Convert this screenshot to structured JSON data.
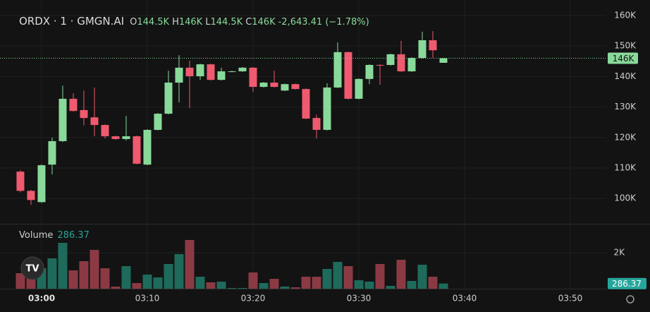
{
  "chart_data": {
    "type": "candlestick",
    "title": "ORDX · 1 · GMGN.AI",
    "ohlc": [
      {
        "label": "O",
        "text": "144.5K"
      },
      {
        "label": "H",
        "text": "146K"
      },
      {
        "label": "L",
        "text": "144.5K"
      },
      {
        "label": "C",
        "text": "146K"
      }
    ],
    "change": "-2,643.41 (−1.78%)",
    "up_color": "#89d99a",
    "down_color": "#ef5a6f",
    "x": [
      -2,
      -1,
      0,
      1,
      2,
      3,
      4,
      5,
      6,
      7,
      8,
      9,
      10,
      11,
      12,
      13,
      14,
      15,
      16,
      17,
      18,
      19,
      20,
      21,
      22,
      23,
      24,
      25,
      26,
      27,
      28,
      29,
      30,
      31,
      32,
      33,
      34,
      35,
      36,
      37,
      38
    ],
    "open": [
      108.8,
      102.5,
      98.8,
      111.1,
      118.8,
      132.7,
      129.0,
      126.6,
      124.1,
      120.4,
      119.5,
      120.4,
      111.1,
      122.5,
      127.8,
      138.0,
      142.9,
      140.1,
      144.0,
      138.9,
      141.6,
      141.7,
      142.9,
      136.6,
      138.0,
      135.4,
      137.5,
      135.9,
      126.4,
      122.5,
      136.4,
      148.0,
      132.7,
      139.2,
      143.8,
      143.8,
      147.3,
      141.7,
      146.1,
      151.9,
      144.5
    ],
    "high": [
      109.2,
      102.8,
      111.2,
      120.0,
      137.0,
      134.5,
      135.4,
      136.4,
      124.3,
      120.6,
      127.1,
      120.6,
      122.7,
      128.0,
      141.9,
      147.0,
      145.2,
      144.2,
      144.2,
      142.9,
      141.9,
      143.1,
      143.1,
      138.2,
      141.9,
      137.7,
      137.7,
      136.1,
      127.5,
      137.8,
      151.2,
      148.2,
      139.4,
      144.0,
      144.0,
      147.5,
      151.7,
      146.3,
      154.7,
      154.9,
      146
    ],
    "low": [
      102.0,
      97.9,
      98.6,
      107.9,
      118.5,
      128.5,
      124.0,
      120.4,
      119.7,
      119.3,
      119.0,
      111.2,
      110.9,
      122.3,
      127.6,
      131.5,
      129.7,
      138.9,
      138.7,
      138.7,
      141.4,
      141.5,
      135.0,
      136.4,
      136.4,
      135.2,
      135.7,
      126.0,
      119.7,
      122.3,
      136.2,
      132.5,
      132.5,
      137.5,
      137.3,
      143.6,
      141.5,
      141.5,
      145.9,
      146.1,
      144.5
    ],
    "close": [
      102.5,
      99.5,
      110.9,
      118.8,
      132.7,
      128.7,
      126.4,
      124.1,
      120.4,
      119.5,
      120.4,
      111.4,
      122.5,
      127.8,
      138.0,
      142.9,
      140.1,
      144.0,
      138.9,
      141.7,
      141.7,
      142.9,
      136.6,
      138.0,
      136.6,
      137.5,
      135.9,
      126.2,
      122.5,
      136.4,
      148.0,
      132.7,
      139.2,
      143.8,
      143.6,
      147.3,
      141.7,
      146.1,
      151.9,
      148.6,
      146
    ],
    "ylim": [
      91.7,
      165.1
    ],
    "yticks": [
      {
        "value": 100,
        "label": "100K"
      },
      {
        "value": 110,
        "label": "110K"
      },
      {
        "value": 120,
        "label": "120K"
      },
      {
        "value": 130,
        "label": "130K"
      },
      {
        "value": 140,
        "label": "140K"
      },
      {
        "value": 150,
        "label": "150K"
      },
      {
        "value": 160,
        "label": "160K"
      }
    ],
    "price_label": {
      "value": 146,
      "label": "146K"
    },
    "xlim": [
      -3.93,
      53.4
    ],
    "xticks": [
      {
        "value": 0,
        "label": "03:00"
      },
      {
        "value": 10,
        "label": "03:10"
      },
      {
        "value": 20,
        "label": "03:20"
      },
      {
        "value": 30,
        "label": "03:30"
      },
      {
        "value": 40,
        "label": "03:40"
      },
      {
        "value": 50,
        "label": "03:50"
      }
    ],
    "volume": {
      "name": "Volume",
      "up_color": "#1e6b5c",
      "down_color": "#8b3a44",
      "values": [
        862,
        627,
        1137,
        1686,
        2548,
        1019,
        1529,
        2156,
        1137,
        118,
        1254,
        314,
        784,
        627,
        1372,
        1921,
        2705,
        666,
        353,
        392,
        39,
        39,
        902,
        314,
        549,
        118,
        78,
        666,
        666,
        1098,
        1490,
        1254,
        470,
        392,
        1372,
        157,
        1607,
        431,
        1333,
        666,
        286.37
      ],
      "ylim": [
        0,
        3293
      ],
      "yticks": [
        {
          "value": 2000,
          "label": "2K"
        }
      ]
    }
  }
}
